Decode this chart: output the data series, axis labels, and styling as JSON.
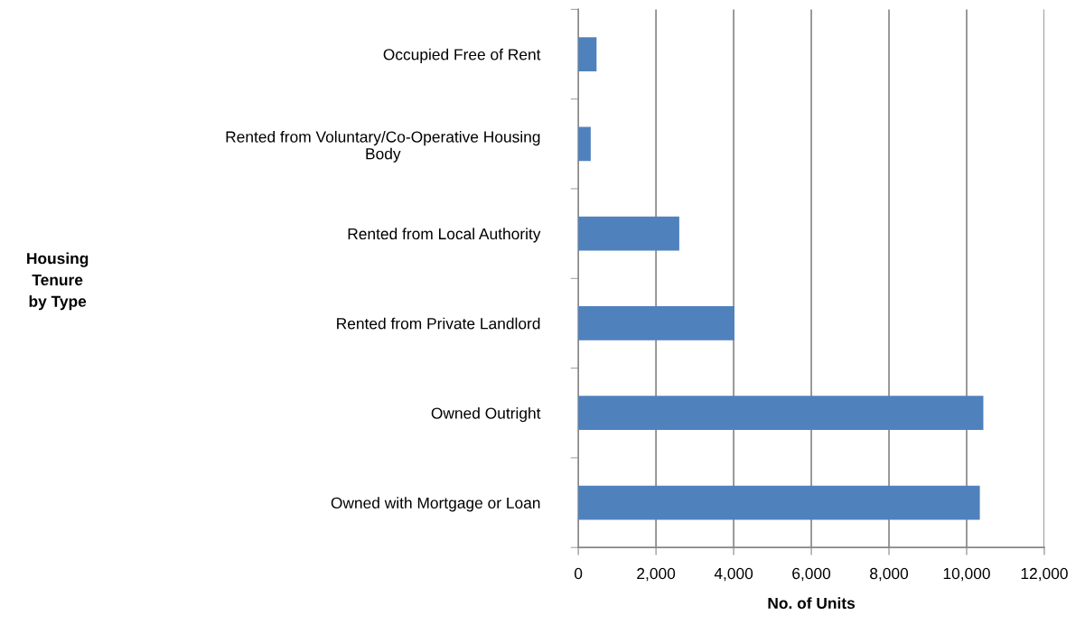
{
  "chart_data": {
    "type": "bar",
    "orientation": "horizontal",
    "categories": [
      "Occupied Free of Rent",
      "Rented from Voluntary/Co-Operative Housing\nBody",
      "Rented from Local Authority",
      "Rented from Private Landlord",
      "Owned Outright",
      "Owned with Mortgage or Loan"
    ],
    "values": [
      470,
      320,
      2600,
      4020,
      10430,
      10340
    ],
    "color": "#4f81bd",
    "xlim": [
      0,
      12000
    ],
    "xticks": [
      {
        "value": 0,
        "label": "0"
      },
      {
        "value": 2000,
        "label": "2,000"
      },
      {
        "value": 4000,
        "label": "4,000"
      },
      {
        "value": 6000,
        "label": "6,000"
      },
      {
        "value": 8000,
        "label": "8,000"
      },
      {
        "value": 10000,
        "label": "10,000"
      },
      {
        "value": 12000,
        "label": "12,000"
      }
    ],
    "xlabel": "No. of Units",
    "annotations": [
      "Housing\nTenure\nby Type"
    ],
    "grid": "x"
  }
}
